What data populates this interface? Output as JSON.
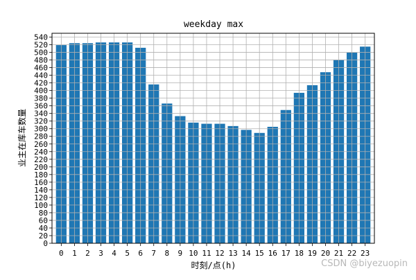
{
  "chart_data": {
    "type": "bar",
    "title": "weekday max",
    "xlabel": "时刻/点(h)",
    "ylabel": "业主在库车数量",
    "categories": [
      "0",
      "1",
      "2",
      "3",
      "4",
      "5",
      "6",
      "7",
      "8",
      "9",
      "10",
      "11",
      "12",
      "13",
      "14",
      "15",
      "16",
      "17",
      "18",
      "19",
      "20",
      "21",
      "22",
      "23"
    ],
    "values": [
      519,
      524,
      524,
      526,
      526,
      526,
      512,
      416,
      366,
      333,
      316,
      313,
      313,
      307,
      297,
      289,
      305,
      349,
      394,
      414,
      448,
      481,
      500,
      515
    ],
    "ylim": [
      0,
      550
    ],
    "yticks": [
      0,
      20,
      40,
      60,
      80,
      100,
      120,
      140,
      160,
      180,
      200,
      220,
      240,
      260,
      280,
      300,
      320,
      340,
      360,
      380,
      400,
      420,
      440,
      460,
      480,
      500,
      520,
      540
    ],
    "grid": true,
    "bar_color": "#1f77b4",
    "grid_color": "#b0b0b0"
  },
  "watermark": "CSDN @biyezuopin"
}
